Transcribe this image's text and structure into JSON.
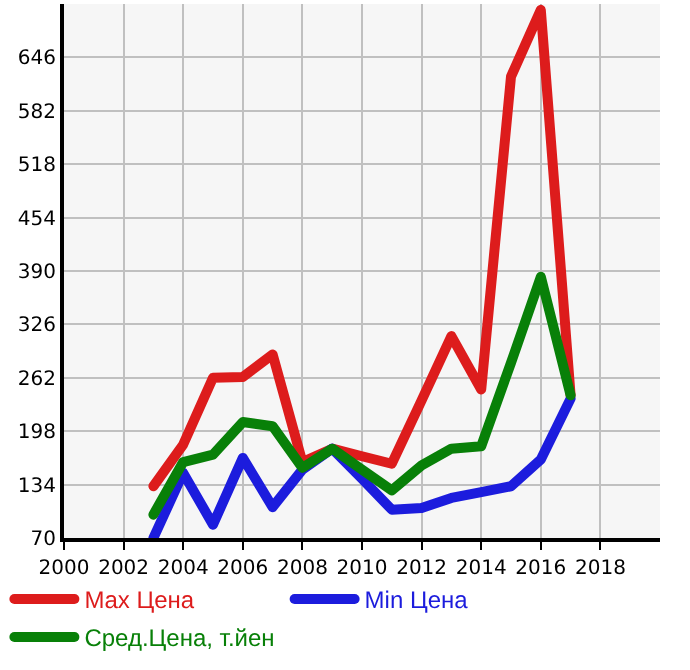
{
  "chart_data": {
    "type": "line",
    "x": [
      2003,
      2004,
      2005,
      2006,
      2007,
      2008,
      2009,
      2010,
      2011,
      2012,
      2013,
      2014,
      2015,
      2016,
      2017
    ],
    "series": [
      {
        "name": "Max Цена",
        "color": "#dd1c1c",
        "values": [
          132,
          182,
          262,
          263,
          290,
          161,
          177,
          168,
          159,
          235,
          312,
          248,
          623,
          703,
          241
        ]
      },
      {
        "name": "Min Цена",
        "color": "#1c1cdd",
        "values": [
          70,
          148,
          86,
          166,
          107,
          152,
          177,
          141,
          104,
          106,
          118,
          125,
          132,
          164,
          237
        ]
      },
      {
        "name": "Сред.Цена, т.йен",
        "color": "#088008",
        "values": [
          98,
          161,
          170,
          209,
          204,
          154,
          177,
          152,
          127,
          157,
          177,
          180,
          280,
          383,
          241
        ]
      }
    ],
    "xlim": [
      2000,
      2020
    ],
    "xticks": [
      2000,
      2002,
      2004,
      2006,
      2008,
      2010,
      2012,
      2014,
      2016,
      2018
    ],
    "ylim": [
      70,
      710
    ],
    "yticks": [
      70,
      134,
      198,
      262,
      326,
      390,
      454,
      518,
      582,
      646
    ],
    "grid": true,
    "legend": "bottom",
    "marker": "none",
    "line_style": "solid"
  }
}
